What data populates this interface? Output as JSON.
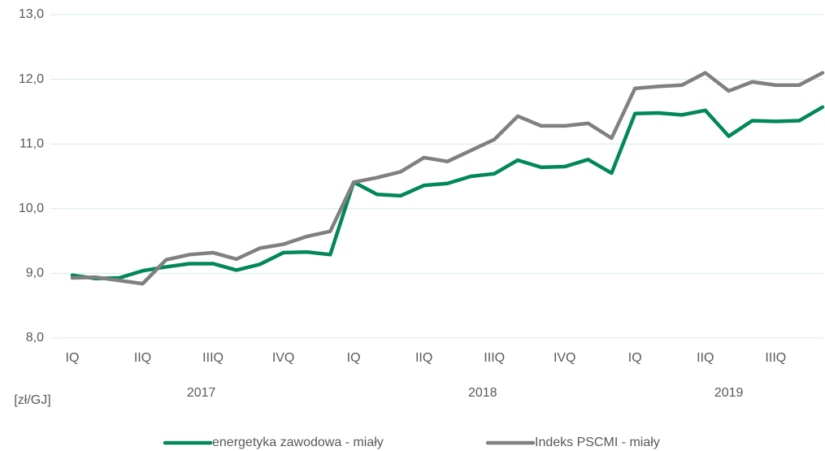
{
  "chart_data": {
    "type": "line",
    "y_axis_label": "[zł/GJ]",
    "categories": [
      "IQ",
      null,
      null,
      "IIQ",
      null,
      null,
      "IIIQ",
      null,
      null,
      "IVQ",
      null,
      null,
      "IQ",
      null,
      null,
      "IIQ",
      null,
      null,
      "IIIQ",
      null,
      null,
      "IVQ",
      null,
      null,
      "IQ",
      null,
      null,
      "IIQ",
      null,
      null,
      "IIIQ",
      null,
      null
    ],
    "x_groups": [
      {
        "label": "2017",
        "count": 12
      },
      {
        "label": "2018",
        "count": 12
      },
      {
        "label": "2019",
        "count": 9
      }
    ],
    "series": [
      {
        "name": "energetyka zawodowa - miały",
        "color": "#00875a",
        "values": [
          8.97,
          8.92,
          8.93,
          9.04,
          9.1,
          9.15,
          9.15,
          9.05,
          9.14,
          9.32,
          9.33,
          9.29,
          10.41,
          10.22,
          10.2,
          10.36,
          10.39,
          10.5,
          10.54,
          10.75,
          10.64,
          10.65,
          10.76,
          10.55,
          11.47,
          11.48,
          11.45,
          11.52,
          11.12,
          11.36,
          11.35,
          11.36,
          11.57
        ]
      },
      {
        "name": "Indeks PSCMI - miały",
        "color": "#808080",
        "values": [
          8.93,
          8.94,
          8.89,
          8.84,
          9.21,
          9.29,
          9.32,
          9.22,
          9.39,
          9.45,
          9.57,
          9.65,
          10.41,
          10.48,
          10.57,
          10.79,
          10.73,
          10.9,
          11.07,
          11.43,
          11.28,
          11.28,
          11.32,
          11.09,
          11.86,
          11.89,
          11.91,
          12.1,
          11.82,
          11.96,
          11.91,
          11.91,
          12.1
        ]
      }
    ],
    "ylim": [
      8,
      13
    ],
    "yticks": [
      {
        "value": 8,
        "label": "8,0"
      },
      {
        "value": 9,
        "label": "9,0"
      },
      {
        "value": 10,
        "label": "10,0"
      },
      {
        "value": 11,
        "label": "11,0"
      },
      {
        "value": 12,
        "label": "12,0"
      },
      {
        "value": 13,
        "label": "13,0"
      }
    ],
    "grid": true,
    "legend": "bottom"
  }
}
